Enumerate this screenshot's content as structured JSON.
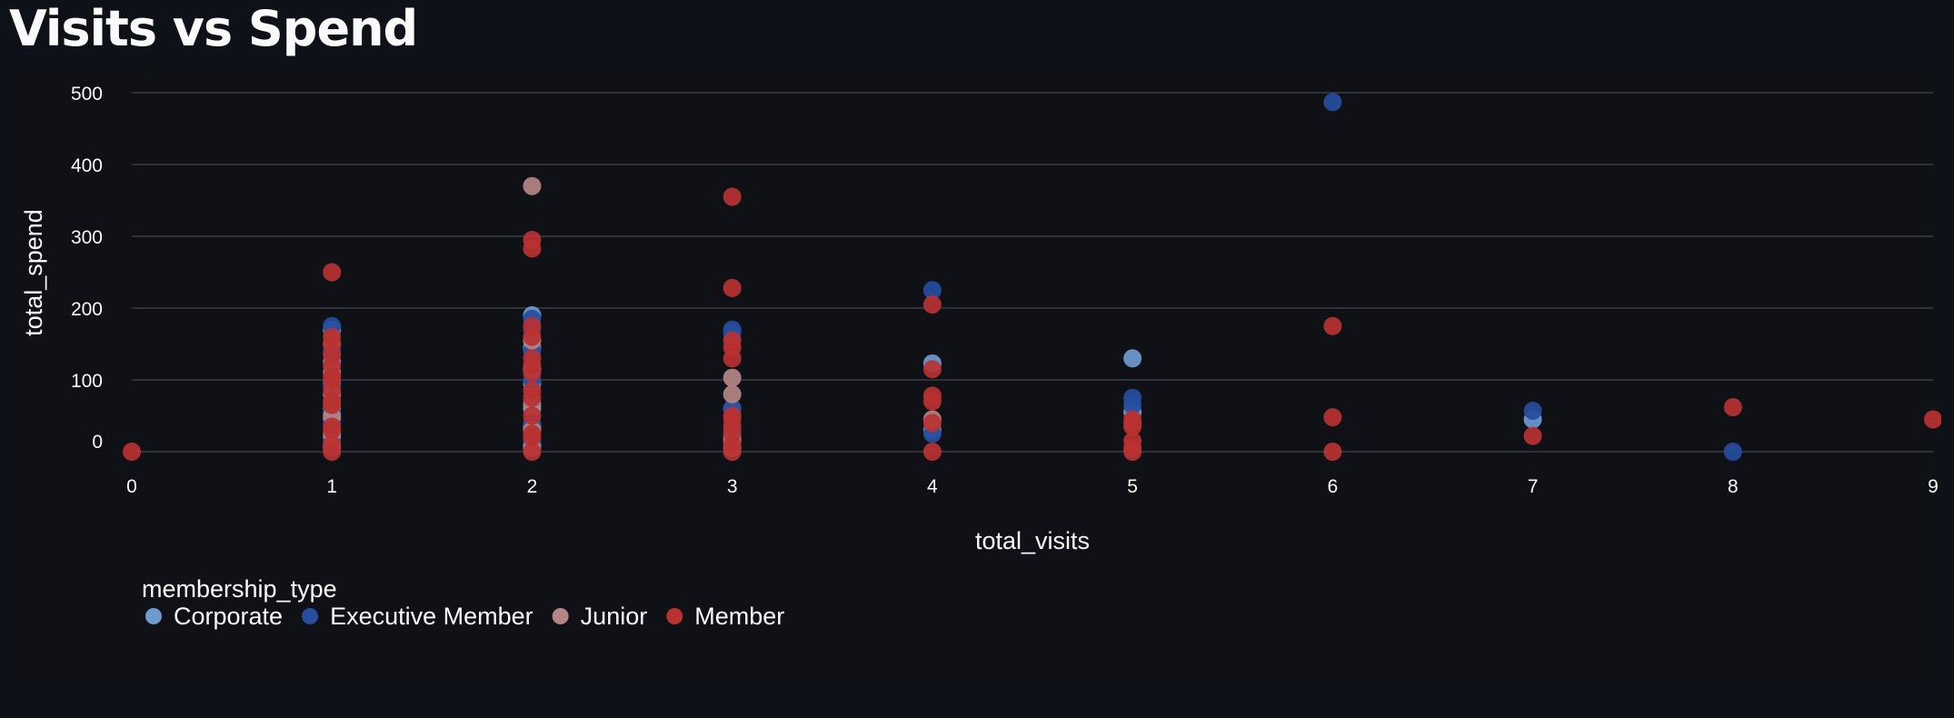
{
  "page": {
    "title": "Visits vs Spend"
  },
  "chart_data": {
    "type": "scatter",
    "title": "Visits vs Spend",
    "xlabel": "total_visits",
    "ylabel": "total_spend",
    "xlim": [
      0,
      9
    ],
    "ylim": [
      0,
      500
    ],
    "x_ticks": [
      0,
      1,
      2,
      3,
      4,
      5,
      6,
      7,
      8,
      9
    ],
    "y_ticks": [
      0,
      100,
      200,
      300,
      400,
      500
    ],
    "grid": "horizontal",
    "legend": {
      "title": "membership_type",
      "position": "bottom-left"
    },
    "series": [
      {
        "name": "Corporate",
        "color": "#6c9bd0",
        "points": [
          [
            1,
            170
          ],
          [
            1,
            125
          ],
          [
            1,
            95
          ],
          [
            1,
            60
          ],
          [
            1,
            45
          ],
          [
            1,
            20
          ],
          [
            2,
            190
          ],
          [
            2,
            145
          ],
          [
            2,
            95
          ],
          [
            2,
            60
          ],
          [
            2,
            35
          ],
          [
            2,
            10
          ],
          [
            3,
            60
          ],
          [
            3,
            20
          ],
          [
            4,
            123
          ],
          [
            4,
            30
          ],
          [
            5,
            130
          ],
          [
            5,
            55
          ],
          [
            7,
            45
          ]
        ]
      },
      {
        "name": "Executive Member",
        "color": "#264d9e",
        "points": [
          [
            1,
            175
          ],
          [
            1,
            140
          ],
          [
            1,
            90
          ],
          [
            1,
            55
          ],
          [
            1,
            40
          ],
          [
            1,
            15
          ],
          [
            1,
            5
          ],
          [
            2,
            185
          ],
          [
            2,
            170
          ],
          [
            2,
            140
          ],
          [
            2,
            100
          ],
          [
            2,
            70
          ],
          [
            2,
            40
          ],
          [
            2,
            15
          ],
          [
            3,
            170
          ],
          [
            3,
            165
          ],
          [
            3,
            60
          ],
          [
            3,
            30
          ],
          [
            4,
            225
          ],
          [
            4,
            25
          ],
          [
            5,
            75
          ],
          [
            5,
            65
          ],
          [
            6,
            487
          ],
          [
            7,
            57
          ],
          [
            8,
            0
          ]
        ]
      },
      {
        "name": "Junior",
        "color": "#b58585",
        "points": [
          [
            1,
            150
          ],
          [
            1,
            110
          ],
          [
            1,
            80
          ],
          [
            1,
            50
          ],
          [
            1,
            25
          ],
          [
            1,
            8
          ],
          [
            2,
            370
          ],
          [
            2,
            155
          ],
          [
            2,
            115
          ],
          [
            2,
            65
          ],
          [
            2,
            30
          ],
          [
            2,
            5
          ],
          [
            3,
            103
          ],
          [
            3,
            80
          ],
          [
            3,
            15
          ],
          [
            3,
            5
          ],
          [
            4,
            45
          ]
        ]
      },
      {
        "name": "Member",
        "color": "#b83232",
        "points": [
          [
            0,
            0
          ],
          [
            1,
            250
          ],
          [
            1,
            160
          ],
          [
            1,
            150
          ],
          [
            1,
            135
          ],
          [
            1,
            120
          ],
          [
            1,
            105
          ],
          [
            1,
            100
          ],
          [
            1,
            85
          ],
          [
            1,
            70
          ],
          [
            1,
            65
          ],
          [
            1,
            35
          ],
          [
            1,
            30
          ],
          [
            1,
            10
          ],
          [
            1,
            0
          ],
          [
            2,
            295
          ],
          [
            2,
            283
          ],
          [
            2,
            175
          ],
          [
            2,
            160
          ],
          [
            2,
            130
          ],
          [
            2,
            120
          ],
          [
            2,
            110
          ],
          [
            2,
            85
          ],
          [
            2,
            75
          ],
          [
            2,
            50
          ],
          [
            2,
            25
          ],
          [
            2,
            20
          ],
          [
            2,
            0
          ],
          [
            3,
            355
          ],
          [
            3,
            228
          ],
          [
            3,
            155
          ],
          [
            3,
            145
          ],
          [
            3,
            130
          ],
          [
            3,
            50
          ],
          [
            3,
            45
          ],
          [
            3,
            35
          ],
          [
            3,
            25
          ],
          [
            3,
            10
          ],
          [
            3,
            0
          ],
          [
            4,
            205
          ],
          [
            4,
            115
          ],
          [
            4,
            78
          ],
          [
            4,
            70
          ],
          [
            4,
            40
          ],
          [
            4,
            0
          ],
          [
            5,
            45
          ],
          [
            5,
            40
          ],
          [
            5,
            35
          ],
          [
            5,
            15
          ],
          [
            5,
            5
          ],
          [
            5,
            0
          ],
          [
            6,
            175
          ],
          [
            6,
            48
          ],
          [
            6,
            0
          ],
          [
            7,
            22
          ],
          [
            8,
            62
          ],
          [
            9,
            45
          ]
        ]
      }
    ]
  }
}
